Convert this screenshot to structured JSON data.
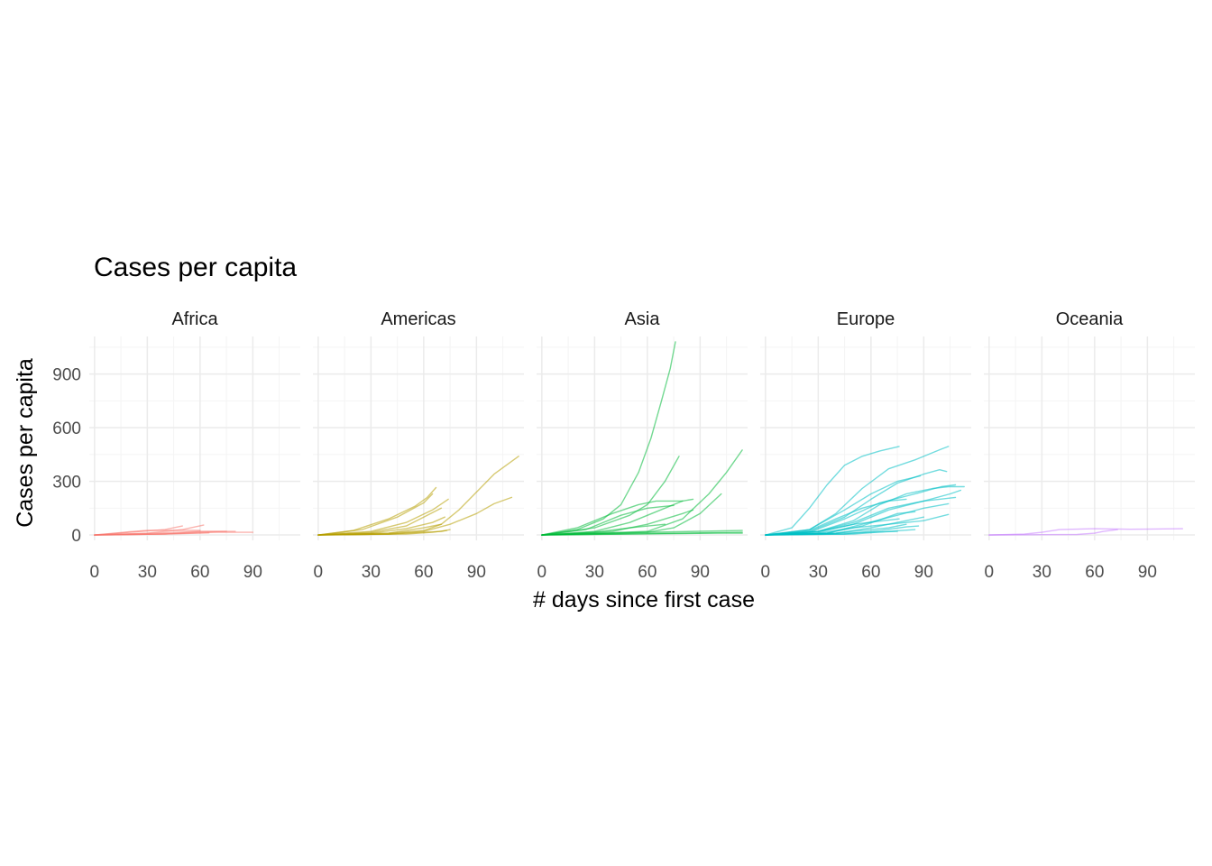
{
  "chart_data": {
    "type": "line",
    "title": "Cases per capita",
    "xlabel": "# days since first case",
    "ylabel": "Cases per capita",
    "xlim": [
      -3,
      117
    ],
    "ylim": [
      -30,
      1110
    ],
    "x_ticks": [
      0,
      30,
      60,
      90
    ],
    "y_ticks": [
      0,
      300,
      600,
      900
    ],
    "grid": true,
    "legend": "none",
    "facets": [
      {
        "label": "Africa",
        "color": "#F8766D",
        "series": [
          {
            "x": [
              0,
              20,
              40,
              50
            ],
            "y": [
              0,
              15,
              30,
              50
            ]
          },
          {
            "x": [
              0,
              30,
              50,
              62
            ],
            "y": [
              0,
              10,
              30,
              55
            ]
          },
          {
            "x": [
              0,
              30,
              60,
              80
            ],
            "y": [
              0,
              8,
              20,
              20
            ]
          },
          {
            "x": [
              0,
              40,
              70,
              90
            ],
            "y": [
              0,
              6,
              15,
              15
            ]
          },
          {
            "x": [
              0,
              20,
              30,
              60
            ],
            "y": [
              0,
              18,
              26,
              26
            ]
          },
          {
            "x": [
              0,
              40,
              60,
              75
            ],
            "y": [
              0,
              5,
              18,
              20
            ]
          },
          {
            "x": [
              0,
              30,
              50,
              65
            ],
            "y": [
              0,
              4,
              8,
              12
            ]
          }
        ]
      },
      {
        "label": "Americas",
        "color": "#B79F00",
        "series": [
          {
            "x": [
              0,
              20,
              40,
              55,
              62,
              67
            ],
            "y": [
              0,
              25,
              90,
              160,
              210,
              265
            ]
          },
          {
            "x": [
              0,
              25,
              45,
              60,
              65
            ],
            "y": [
              0,
              30,
              100,
              180,
              230
            ]
          },
          {
            "x": [
              0,
              30,
              50,
              65,
              74
            ],
            "y": [
              0,
              20,
              70,
              140,
              200
            ]
          },
          {
            "x": [
              0,
              40,
              60,
              70,
              80,
              90,
              100,
              114
            ],
            "y": [
              0,
              10,
              25,
              60,
              140,
              240,
              340,
              440
            ]
          },
          {
            "x": [
              0,
              40,
              60,
              75,
              90,
              100,
              110
            ],
            "y": [
              0,
              5,
              20,
              60,
              120,
              175,
              210
            ]
          },
          {
            "x": [
              0,
              30,
              50,
              60,
              70
            ],
            "y": [
              0,
              15,
              50,
              100,
              150
            ]
          },
          {
            "x": [
              0,
              30,
              50,
              65,
              72
            ],
            "y": [
              0,
              10,
              35,
              70,
              100
            ]
          },
          {
            "x": [
              0,
              40,
              60,
              70
            ],
            "y": [
              0,
              10,
              40,
              60
            ]
          },
          {
            "x": [
              0,
              40,
              70,
              75
            ],
            "y": [
              0,
              5,
              20,
              30
            ]
          },
          {
            "x": [
              0,
              50,
              65,
              73
            ],
            "y": [
              0,
              5,
              15,
              25
            ]
          }
        ]
      },
      {
        "label": "Asia",
        "color": "#00BA38",
        "series": [
          {
            "x": [
              0,
              20,
              35,
              45,
              55,
              62,
              68,
              73,
              76
            ],
            "y": [
              0,
              30,
              90,
              170,
              350,
              540,
              750,
              930,
              1080
            ]
          },
          {
            "x": [
              0,
              30,
              50,
              60,
              70,
              78
            ],
            "y": [
              0,
              40,
              110,
              170,
              300,
              440
            ]
          },
          {
            "x": [
              0,
              60,
              80,
              95,
              105,
              114
            ],
            "y": [
              0,
              20,
              90,
              230,
              350,
              475
            ]
          },
          {
            "x": [
              0,
              60,
              75,
              90,
              102
            ],
            "y": [
              0,
              15,
              40,
              120,
              230
            ]
          },
          {
            "x": [
              0,
              20,
              40,
              55,
              65,
              80
            ],
            "y": [
              0,
              40,
              120,
              170,
              190,
              190
            ]
          },
          {
            "x": [
              0,
              25,
              45,
              60,
              75
            ],
            "y": [
              0,
              30,
              110,
              150,
              165
            ]
          },
          {
            "x": [
              0,
              30,
              50,
              65,
              80,
              86
            ],
            "y": [
              0,
              20,
              70,
              130,
              190,
              200
            ]
          },
          {
            "x": [
              0,
              40,
              60,
              80,
              86
            ],
            "y": [
              0,
              20,
              60,
              120,
              140
            ]
          },
          {
            "x": [
              0,
              30,
              50,
              70
            ],
            "y": [
              0,
              15,
              40,
              60
            ]
          },
          {
            "x": [
              0,
              60,
              114
            ],
            "y": [
              0,
              15,
              25
            ]
          },
          {
            "x": [
              0,
              60,
              114
            ],
            "y": [
              0,
              8,
              15
            ]
          },
          {
            "x": [
              0,
              50,
              100,
              114
            ],
            "y": [
              0,
              5,
              10,
              10
            ]
          }
        ]
      },
      {
        "label": "Europe",
        "color": "#00BFC4",
        "series": [
          {
            "x": [
              0,
              15,
              25,
              35,
              45,
              55,
              65,
              76
            ],
            "y": [
              0,
              40,
              150,
              280,
              390,
              440,
              470,
              495
            ]
          },
          {
            "x": [
              0,
              25,
              40,
              55,
              70,
              85,
              100,
              104
            ],
            "y": [
              0,
              30,
              120,
              260,
              370,
              420,
              480,
              495
            ]
          },
          {
            "x": [
              0,
              25,
              45,
              60,
              75,
              90,
              99,
              103
            ],
            "y": [
              0,
              20,
              100,
              200,
              290,
              340,
              365,
              355
            ]
          },
          {
            "x": [
              0,
              30,
              50,
              65,
              80,
              95,
              104,
              113
            ],
            "y": [
              0,
              20,
              80,
              170,
              230,
              260,
              270,
              270
            ]
          },
          {
            "x": [
              0,
              25,
              45,
              65,
              85,
              100,
              108
            ],
            "y": [
              0,
              15,
              90,
              180,
              230,
              270,
              280
            ]
          },
          {
            "x": [
              0,
              30,
              50,
              70,
              90,
              105,
              111
            ],
            "y": [
              0,
              15,
              60,
              140,
              190,
              230,
              250
            ]
          },
          {
            "x": [
              0,
              25,
              45,
              60,
              75,
              88
            ],
            "y": [
              0,
              30,
              140,
              230,
              300,
              330
            ]
          },
          {
            "x": [
              0,
              30,
              50,
              70,
              90,
              108
            ],
            "y": [
              0,
              20,
              70,
              150,
              190,
              210
            ]
          },
          {
            "x": [
              0,
              35,
              55,
              75,
              90,
              104
            ],
            "y": [
              0,
              10,
              60,
              110,
              150,
              175
            ]
          },
          {
            "x": [
              0,
              30,
              50,
              70,
              90,
              104
            ],
            "y": [
              0,
              10,
              40,
              60,
              80,
              115
            ]
          },
          {
            "x": [
              0,
              25,
              40,
              55,
              70,
              80
            ],
            "y": [
              0,
              25,
              90,
              150,
              190,
              200
            ]
          },
          {
            "x": [
              0,
              35,
              55,
              75,
              85
            ],
            "y": [
              0,
              10,
              50,
              120,
              130
            ]
          },
          {
            "x": [
              0,
              40,
              60,
              80,
              90
            ],
            "y": [
              0,
              10,
              40,
              80,
              100
            ]
          },
          {
            "x": [
              0,
              45,
              65,
              80,
              87
            ],
            "y": [
              0,
              5,
              25,
              45,
              50
            ]
          },
          {
            "x": [
              0,
              50,
              70,
              85
            ],
            "y": [
              0,
              5,
              20,
              30
            ]
          },
          {
            "x": [
              0,
              30,
              60,
              75
            ],
            "y": [
              0,
              5,
              15,
              20
            ]
          },
          {
            "x": [
              0,
              40,
              70,
              80
            ],
            "y": [
              0,
              10,
              40,
              60
            ]
          },
          {
            "x": [
              0,
              30,
              50,
              76
            ],
            "y": [
              0,
              20,
              60,
              90
            ]
          }
        ]
      },
      {
        "label": "Oceania",
        "color": "#C77CFF",
        "series": [
          {
            "x": [
              0,
              20,
              30,
              40,
              60,
              80,
              110
            ],
            "y": [
              0,
              5,
              15,
              30,
              35,
              32,
              35
            ]
          },
          {
            "x": [
              0,
              30,
              50,
              60,
              65,
              73
            ],
            "y": [
              0,
              2,
              3,
              10,
              20,
              30
            ]
          }
        ]
      }
    ]
  }
}
